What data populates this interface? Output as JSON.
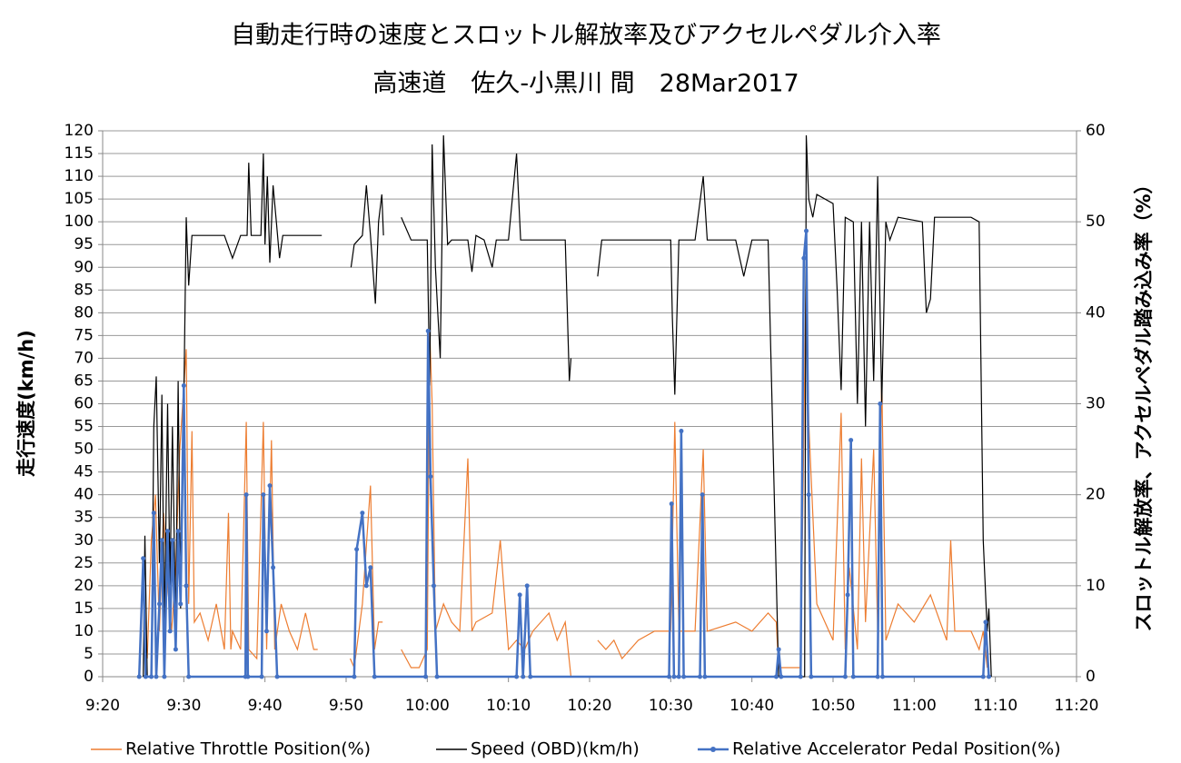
{
  "chart_data": {
    "type": "line",
    "title": "自動走行時の速度とスロットル解放率及びアクセルペダル介入率",
    "subtitle": "高速道　佐久-小黒川 間　28Mar2017",
    "ylabel": "走行速度(km/h)",
    "y2label": "スロットル解放率、アクセルペダル踏み込み率（%）",
    "xlim": [
      560,
      680
    ],
    "ylim": [
      0,
      120
    ],
    "y2lim": [
      0,
      60
    ],
    "grid": true,
    "legend": "bottom",
    "xticks": [
      {
        "value": 560,
        "label": "9:20"
      },
      {
        "value": 570,
        "label": "9:30"
      },
      {
        "value": 580,
        "label": "9:40"
      },
      {
        "value": 590,
        "label": "9:50"
      },
      {
        "value": 600,
        "label": "10:00"
      },
      {
        "value": 610,
        "label": "10:10"
      },
      {
        "value": 620,
        "label": "10:20"
      },
      {
        "value": 630,
        "label": "10:30"
      },
      {
        "value": 640,
        "label": "10:40"
      },
      {
        "value": 650,
        "label": "10:50"
      },
      {
        "value": 660,
        "label": "11:00"
      },
      {
        "value": 670,
        "label": "11:10"
      },
      {
        "value": 680,
        "label": "11:20"
      }
    ],
    "yticks": [
      0,
      5,
      10,
      15,
      20,
      25,
      30,
      35,
      40,
      45,
      50,
      55,
      60,
      65,
      70,
      75,
      80,
      85,
      90,
      95,
      100,
      105,
      110,
      115,
      120
    ],
    "y2ticks": [
      0,
      10,
      20,
      30,
      40,
      50,
      60
    ],
    "series": [
      {
        "name": "Relative Throttle Position(%)",
        "color": "#ed7d31",
        "axis": "y2",
        "markers": false,
        "x": [
          565.5,
          566,
          566.5,
          567,
          567.5,
          568,
          568.5,
          569,
          569.5,
          570.3,
          570.6,
          571,
          571.3,
          572,
          573,
          574,
          575,
          575.5,
          575.8,
          576,
          577,
          577.7,
          578,
          579,
          579.8,
          580.2,
          580.8,
          581.2,
          582,
          583,
          584,
          585,
          586,
          586.5,
          588,
          590.5,
          591,
          592,
          593,
          593.5,
          594,
          594.5,
          595.7,
          596.8,
          598,
          599,
          600,
          600.3,
          600.6,
          601,
          602,
          603,
          604,
          605,
          605.5,
          606,
          608,
          609,
          610,
          611,
          612,
          613,
          615,
          616,
          617,
          617.7,
          619,
          621,
          622,
          623,
          624,
          626,
          628,
          630,
          630.5,
          631,
          633,
          634,
          634.5,
          638,
          640,
          642,
          643,
          643.3,
          646,
          646.7,
          647,
          648,
          650,
          651,
          651.5,
          652,
          653,
          653.5,
          654,
          655,
          655.5,
          656,
          656.5,
          658,
          660,
          662,
          664,
          664.5,
          665,
          667,
          668,
          668.5,
          669
        ],
        "values": [
          2,
          15,
          20,
          5,
          18,
          10,
          5,
          12,
          25,
          36,
          8,
          27,
          6,
          7,
          4,
          8,
          3,
          18,
          3,
          5,
          3,
          28,
          3,
          2,
          28,
          3,
          26,
          3,
          8,
          5,
          3,
          7,
          3,
          3,
          null,
          2,
          1,
          8,
          21,
          3,
          6,
          6,
          null,
          3,
          1,
          1,
          3,
          38,
          30,
          5,
          8,
          6,
          5,
          24,
          5,
          6,
          7,
          15,
          3,
          4,
          3,
          5,
          7,
          4,
          6,
          0,
          null,
          4,
          3,
          4,
          2,
          4,
          5,
          5,
          28,
          5,
          5,
          25,
          5,
          6,
          5,
          7,
          6,
          1,
          1,
          46,
          28,
          8,
          4,
          29,
          3,
          12,
          3,
          24,
          6,
          25,
          5,
          33,
          4,
          8,
          6,
          9,
          4,
          15,
          5,
          5,
          3,
          5,
          1
        ]
      },
      {
        "name": "Speed (OBD)(km/h)",
        "color": "#000000",
        "axis": "y",
        "markers": false,
        "x": [
          565,
          565.2,
          565.5,
          566,
          566.3,
          566.6,
          567,
          567.3,
          567.6,
          568,
          568.3,
          568.6,
          569,
          569.3,
          569.6,
          570,
          570.3,
          570.6,
          571,
          575,
          576,
          577,
          577.8,
          578,
          578.3,
          579.5,
          579.8,
          580,
          580.3,
          580.6,
          581,
          581.4,
          581.8,
          582.2,
          587,
          588.5,
          590.6,
          591,
          592,
          592.5,
          593,
          593.6,
          594,
          594.4,
          594.6,
          595.7,
          596.8,
          598,
          600,
          600.3,
          600.6,
          601,
          601.3,
          601.6,
          602,
          602.5,
          603,
          605,
          605.5,
          606,
          607,
          608,
          608.5,
          610,
          611,
          611.5,
          617,
          617.5,
          617.7,
          619,
          621,
          621.5,
          625,
          630,
          630.2,
          630.5,
          631,
          633,
          634,
          634.5,
          638,
          639,
          640,
          642,
          643.3,
          646.5,
          646.7,
          647,
          647.5,
          648,
          650,
          650.5,
          651,
          651.5,
          652.5,
          653,
          653.5,
          654,
          654.5,
          655,
          655.5,
          656,
          656.5,
          657,
          658,
          661,
          661.5,
          662,
          662.5,
          667,
          668,
          668.5,
          669,
          669.2,
          669.5
        ],
        "values": [
          0,
          31,
          0,
          0,
          55,
          66,
          25,
          62,
          10,
          60,
          20,
          55,
          10,
          65,
          15,
          60,
          101,
          86,
          97,
          97,
          92,
          97,
          97,
          113,
          97,
          97,
          115,
          95,
          110,
          91,
          108,
          100,
          92,
          97,
          97,
          null,
          90,
          95,
          97,
          108,
          97,
          82,
          100,
          106,
          97,
          null,
          101,
          96,
          96,
          64,
          117,
          90,
          80,
          70,
          119,
          95,
          96,
          96,
          89,
          97,
          96,
          90,
          96,
          96,
          115,
          96,
          96,
          65,
          70,
          null,
          88,
          96,
          96,
          96,
          79,
          62,
          96,
          96,
          110,
          96,
          96,
          88,
          96,
          96,
          0,
          0,
          119,
          105,
          101,
          106,
          104,
          85,
          63,
          101,
          100,
          60,
          100,
          55,
          100,
          65,
          110,
          60,
          100,
          96,
          101,
          100,
          80,
          83,
          101,
          101,
          100,
          30,
          10,
          15,
          0
        ]
      },
      {
        "name": "Relative Accelerator Pedal Position(%)",
        "color": "#4472c4",
        "axis": "y2",
        "markers": true,
        "x": [
          564.5,
          565,
          565.3,
          566,
          566.3,
          566.6,
          567,
          567.3,
          567.6,
          568,
          568.3,
          568.6,
          569,
          569.3,
          569.6,
          570,
          570.3,
          570.6,
          577.6,
          577.7,
          577.9,
          579.6,
          579.8,
          580.2,
          580.6,
          581,
          581.5,
          591,
          591.3,
          592,
          592.5,
          593,
          593.5,
          599.8,
          600.1,
          600.4,
          600.8,
          601.2,
          611,
          611.4,
          611.8,
          612.3,
          612.7,
          629.8,
          630.1,
          630.4,
          631,
          631.3,
          631.6,
          633.6,
          633.9,
          634.2,
          643,
          643.3,
          643.6,
          646,
          646.4,
          646.7,
          647,
          647.3,
          651.5,
          651.8,
          652.2,
          652.5,
          655.5,
          655.8,
          656.1,
          668.5,
          668.8,
          669.2
        ],
        "values": [
          0,
          13,
          0,
          0,
          18,
          0,
          8,
          15,
          0,
          16,
          5,
          15,
          3,
          16,
          8,
          32,
          10,
          0,
          0,
          20,
          0,
          0,
          20,
          5,
          21,
          12,
          0,
          0,
          14,
          18,
          10,
          12,
          0,
          0,
          38,
          22,
          10,
          0,
          0,
          9,
          0,
          10,
          0,
          0,
          19,
          0,
          0,
          27,
          0,
          0,
          20,
          0,
          0,
          3,
          0,
          0,
          46,
          49,
          20,
          0,
          0,
          9,
          26,
          0,
          0,
          30,
          0,
          0,
          6,
          0
        ]
      }
    ]
  }
}
